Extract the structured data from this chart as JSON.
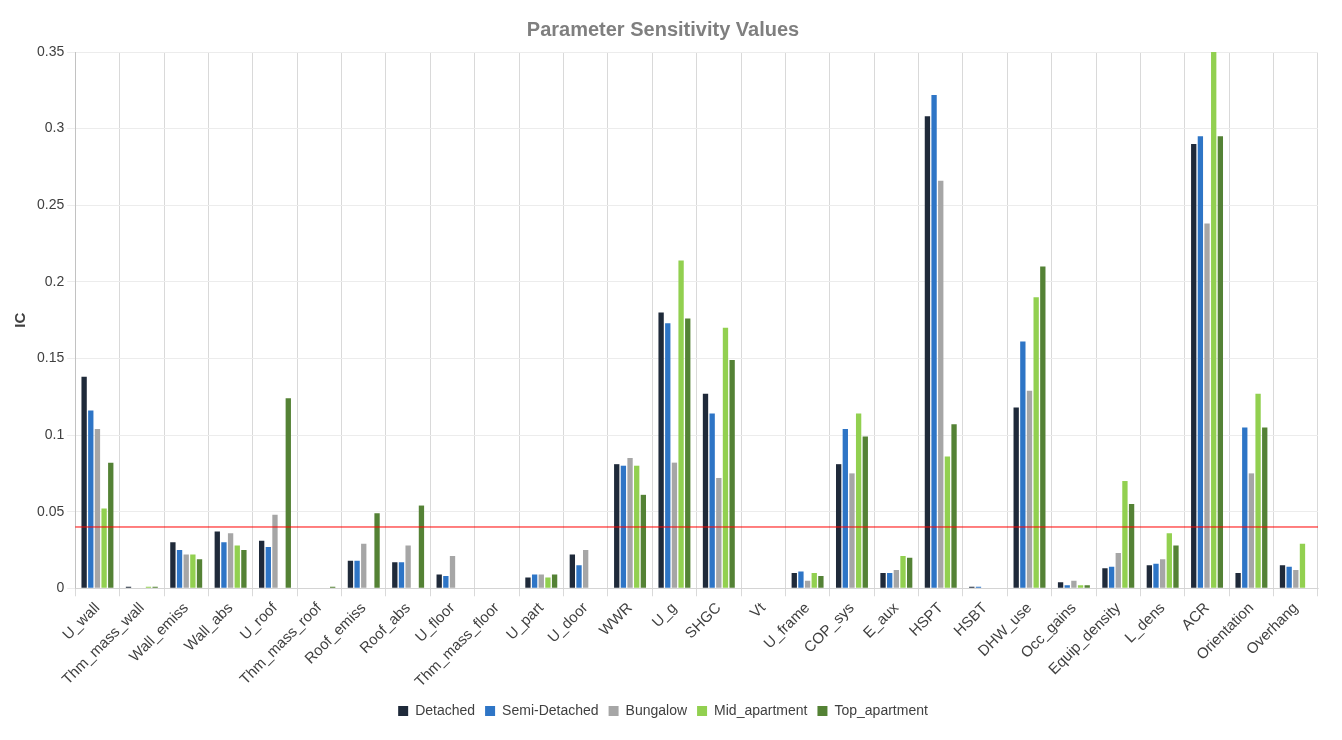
{
  "chart_data": {
    "type": "bar",
    "title": "Parameter Sensitivity Values",
    "ylabel": "IC",
    "categories": [
      "U_wall",
      "Thm_mass_wall",
      "Wall_emiss",
      "Wall_abs",
      "U_roof",
      "Thm_mass_roof",
      "Roof_emiss",
      "Roof_abs",
      "U_floor",
      "Thm_mass_floor",
      "U_part",
      "U_door",
      "WWR",
      "U_g",
      "SHGC",
      "Vt",
      "U_frame",
      "COP_sys",
      "E_aux",
      "HSPT",
      "HSBT",
      "DHW_use",
      "Occ_gains",
      "Equip_density",
      "L_dens",
      "ACR",
      "Orientation",
      "Overhang"
    ],
    "series": [
      {
        "name": "Detached",
        "color": "#1f2a3a",
        "values": [
          0.138,
          0.001,
          0.03,
          0.037,
          0.031,
          0,
          0.018,
          0.017,
          0.009,
          null,
          0.007,
          0.022,
          0.081,
          0.18,
          0.127,
          0,
          0.01,
          0.081,
          0.01,
          0.308,
          0.001,
          0.118,
          0.004,
          0.013,
          0.015,
          0.29,
          0.01,
          0.015
        ]
      },
      {
        "name": "Semi-Detached",
        "color": "#2e75c6",
        "values": [
          0.116,
          0,
          0.025,
          0.03,
          0.027,
          0,
          0.018,
          0.017,
          0.008,
          0,
          0.009,
          0.015,
          0.08,
          0.173,
          0.114,
          0,
          0.011,
          0.104,
          0.01,
          0.322,
          0.001,
          0.161,
          0.002,
          0.014,
          0.016,
          0.295,
          0.105,
          0.014
        ]
      },
      {
        "name": "Bungalow",
        "color": "#a6a6a6",
        "values": [
          0.104,
          null,
          0.022,
          0.036,
          0.048,
          0,
          0.029,
          0.028,
          0.021,
          null,
          0.009,
          0.025,
          0.085,
          0.082,
          0.072,
          0,
          0.005,
          0.075,
          0.012,
          0.266,
          null,
          0.129,
          0.005,
          0.023,
          0.019,
          0.238,
          0.075,
          0.012
        ]
      },
      {
        "name": "Mid_apartment",
        "color": "#92d050",
        "values": [
          0.052,
          0.001,
          0.022,
          0.028,
          0,
          0,
          0,
          0,
          0,
          0,
          0.007,
          0,
          0.08,
          0.214,
          0.17,
          0,
          0.01,
          0.114,
          0.021,
          0.086,
          0,
          0.19,
          0.002,
          0.07,
          0.036,
          0.35,
          0.127,
          0.029
        ]
      },
      {
        "name": "Top_apartment",
        "color": "#548235",
        "values": [
          0.082,
          0.001,
          0.019,
          0.025,
          0.124,
          0.001,
          0.049,
          0.054,
          0,
          0,
          0.009,
          0,
          0.061,
          0.176,
          0.149,
          0,
          0.008,
          0.099,
          0.02,
          0.107,
          0,
          0.21,
          0.002,
          0.055,
          0.028,
          0.295,
          0.105,
          null
        ]
      }
    ],
    "ylim": [
      0,
      0.35
    ],
    "yticks": [
      0,
      0.05,
      0.1,
      0.15,
      0.2,
      0.25,
      0.3,
      0.35
    ],
    "ref_lines": [
      {
        "axis": "y",
        "value": 0.04,
        "color": "#ff0000"
      }
    ],
    "grid": true,
    "legend": "bottom"
  }
}
